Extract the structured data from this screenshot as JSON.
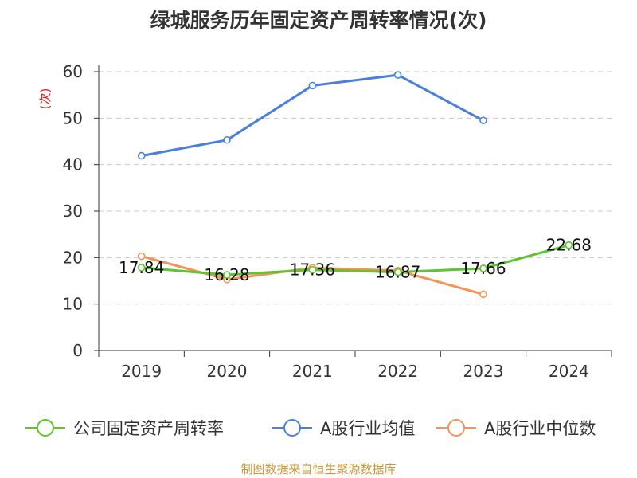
{
  "chart_data": {
    "type": "line",
    "title": "绿城服务历年固定资产周转率情况(次)",
    "ylabel": "(次)",
    "xlabel": "",
    "categories": [
      "2019",
      "2020",
      "2021",
      "2022",
      "2023",
      "2024"
    ],
    "ylim": [
      0,
      60
    ],
    "yticks": [
      "0",
      "10",
      "20",
      "30",
      "40",
      "50",
      "60"
    ],
    "grid": true,
    "legend_position": "bottom",
    "series": [
      {
        "name": "公司固定资产周转率",
        "color": "#5cc62c",
        "values": [
          17.84,
          16.28,
          17.36,
          16.87,
          17.66,
          22.68
        ],
        "labels": [
          "17.84",
          "16.28",
          "17.36",
          "16.87",
          "17.66",
          "22.68"
        ]
      },
      {
        "name": "A股行业均值",
        "color": "#4a7fdc",
        "values": [
          41.9,
          45.3,
          57.0,
          59.3,
          49.5,
          null
        ]
      },
      {
        "name": "A股行业中位数",
        "color": "#f39355",
        "values": [
          20.3,
          15.3,
          17.8,
          17.2,
          12.1,
          null
        ]
      }
    ]
  },
  "source_text": "制图数据来自恒生聚源数据库"
}
